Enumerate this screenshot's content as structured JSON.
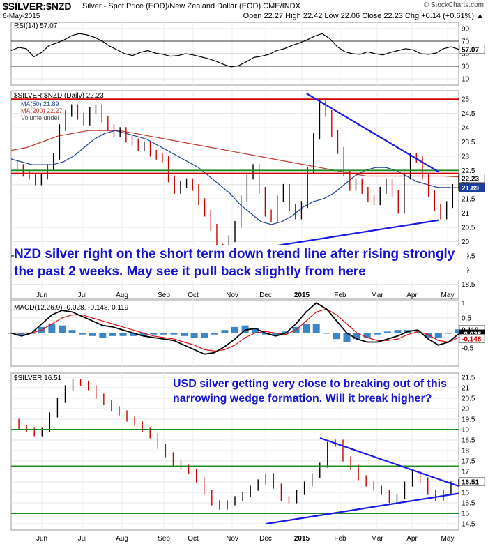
{
  "header": {
    "symbol": "$SILVER:$NZD",
    "description": "Silver - Spot Price (EOD)/New Zealand Dollar (EOD) CME/INDX",
    "date": "6-May-2015",
    "brand": "© StockCharts.com",
    "ohlc": "Open 22.27  High 22.42  Low 22.06  Close 22.23  Chg +0.14 (+0.61%) ▲"
  },
  "annotations": {
    "nzd": "NZD silver right on the short term down trend line after rising strongly the past 2 weeks. May see it pull back slightly from here",
    "usd": "USD silver getting very close to breaking out of this narrowing wedge formation. Will it break higher?"
  },
  "x_axis": {
    "labels": [
      "Jun",
      "Jul",
      "Aug",
      "Sep",
      "Oct",
      "Nov",
      "Dec",
      "2015",
      "Feb",
      "Mar",
      "Apr",
      "May"
    ]
  },
  "chart_data": [
    {
      "type": "line",
      "panel": "rsi",
      "legend": "RSI(14) 57.07",
      "ylim": [
        0,
        100
      ],
      "ticks": [
        10,
        30,
        50,
        70,
        90
      ],
      "last_label": "57.07",
      "reference_lines": [
        30,
        70
      ],
      "values": [
        55,
        60,
        58,
        45,
        52,
        63,
        67,
        72,
        79,
        82,
        80,
        76,
        70,
        62,
        56,
        50,
        47,
        52,
        55,
        51,
        49,
        46,
        47,
        50,
        48,
        45,
        42,
        38,
        33,
        29,
        31,
        37,
        44,
        46,
        49,
        55,
        58,
        63,
        67,
        72,
        78,
        82,
        74,
        61,
        53,
        50,
        49,
        53,
        50,
        48,
        52,
        55,
        58,
        56,
        50,
        49,
        51,
        58,
        61,
        57
      ]
    },
    {
      "type": "line",
      "panel": "nzd-price",
      "legend": [
        "$SILVER:$NZD (Daily) 22.23",
        "MA(50) 21.89",
        "MA(200) 22.27",
        "Volume undef"
      ],
      "ylim": [
        18,
        25.3
      ],
      "ticks": [
        18.5,
        19.0,
        19.5,
        20.0,
        20.5,
        21.0,
        21.5,
        22.0,
        22.5,
        23.0,
        23.5,
        24.0,
        24.5,
        25.0
      ],
      "last_labels": [
        "22.23",
        "21.89"
      ],
      "horizontal_lines": [
        25.0,
        22.4,
        22.5,
        19.5
      ],
      "trend_lines": [
        {
          "from": [
            0.66,
            25.2
          ],
          "to": [
            0.955,
            22.45
          ]
        },
        {
          "from": [
            0.49,
            19.6
          ],
          "to": [
            0.955,
            20.75
          ]
        }
      ],
      "close": [
        22.7,
        22.6,
        22.4,
        22.3,
        22.1,
        22.3,
        22.6,
        23.0,
        24.0,
        24.5,
        24.7,
        24.4,
        24.2,
        24.6,
        24.7,
        24.3,
        24.0,
        23.8,
        23.9,
        23.6,
        23.5,
        23.3,
        23.4,
        23.1,
        23.0,
        22.9,
        22.2,
        21.8,
        22.0,
        22.1,
        21.9,
        21.4,
        21.0,
        20.5,
        19.8,
        19.7,
        20.1,
        20.6,
        21.5,
        22.3,
        22.6,
        21.8,
        21.0,
        20.8,
        21.5,
        21.9,
        21.2,
        20.9,
        21.3,
        22.5,
        23.7,
        24.9,
        24.5,
        23.8,
        23.2,
        22.4,
        21.9,
        22.1,
        21.8,
        21.5,
        21.4,
        21.8,
        22.1,
        21.7,
        21.1,
        22.3,
        23.0,
        22.9,
        22.3,
        21.7,
        21.2,
        20.9,
        21.3,
        21.9,
        22.23
      ],
      "ma50": [
        22.9,
        22.8,
        22.7,
        22.7,
        22.7,
        22.8,
        23.0,
        23.3,
        23.6,
        23.8,
        23.9,
        23.8,
        23.7,
        23.6,
        23.4,
        23.2,
        23.0,
        22.8,
        22.6,
        22.3,
        22.0,
        21.7,
        21.3,
        21.0,
        20.7,
        20.6,
        20.7,
        20.9,
        21.2,
        21.4,
        21.5,
        21.7,
        22.0,
        22.3,
        22.5,
        22.6,
        22.6,
        22.5,
        22.3,
        22.1,
        22.0,
        21.9,
        21.9,
        21.89
      ],
      "ma200": [
        23.2,
        23.3,
        23.5,
        23.7,
        23.8,
        23.9,
        23.9,
        23.9,
        23.8,
        23.7,
        23.6,
        23.5,
        23.4,
        23.3,
        23.2,
        23.1,
        23.0,
        22.9,
        22.8,
        22.7,
        22.6,
        22.5,
        22.4,
        22.3,
        22.3,
        22.3,
        22.3,
        22.3,
        22.3,
        22.27
      ]
    },
    {
      "type": "line",
      "panel": "macd",
      "legend": "MACD(12,26,9) -0.028, -0.148, 0.119",
      "ylim": [
        -1.1,
        1.1
      ],
      "ticks": [
        -0.5,
        0.0,
        0.5,
        1.0
      ],
      "last_labels": [
        "0.119",
        "-0.028",
        "-0.148"
      ],
      "macd": [
        0.0,
        -0.1,
        0.0,
        0.3,
        0.6,
        0.75,
        0.7,
        0.55,
        0.4,
        0.25,
        0.2,
        0.1,
        0.0,
        -0.1,
        -0.15,
        -0.2,
        -0.25,
        -0.4,
        -0.55,
        -0.7,
        -0.65,
        -0.45,
        -0.2,
        0.1,
        0.15,
        0.0,
        -0.1,
        0.0,
        0.3,
        0.7,
        1.0,
        0.8,
        0.4,
        0.0,
        -0.2,
        -0.3,
        -0.3,
        -0.2,
        -0.1,
        0.05,
        0.1,
        -0.2,
        -0.4,
        -0.3,
        -0.028
      ],
      "signal": [
        0.0,
        0.0,
        0.0,
        0.1,
        0.3,
        0.5,
        0.6,
        0.6,
        0.5,
        0.4,
        0.3,
        0.2,
        0.1,
        0.0,
        -0.1,
        -0.15,
        -0.2,
        -0.3,
        -0.4,
        -0.55,
        -0.6,
        -0.55,
        -0.4,
        -0.15,
        0.0,
        0.05,
        0.0,
        -0.05,
        0.1,
        0.4,
        0.7,
        0.8,
        0.6,
        0.3,
        0.0,
        -0.15,
        -0.25,
        -0.25,
        -0.2,
        -0.05,
        0.05,
        -0.05,
        -0.25,
        -0.3,
        -0.148
      ]
    },
    {
      "type": "line",
      "panel": "usd-price",
      "legend": "$SILVER 16.51",
      "ylim": [
        14.2,
        21.7
      ],
      "ticks": [
        14.5,
        15.0,
        15.5,
        16.0,
        16.5,
        17.0,
        17.5,
        18.0,
        18.5,
        19.0,
        19.5,
        20.0,
        20.5,
        21.0,
        21.5
      ],
      "last_label": "16.51",
      "horizontal_lines": [
        19.0,
        17.25,
        15.0
      ],
      "trend_lines": [
        {
          "from": [
            0.69,
            18.6
          ],
          "to": [
            1.0,
            16.3
          ]
        },
        {
          "from": [
            0.57,
            14.5
          ],
          "to": [
            1.0,
            15.95
          ]
        }
      ],
      "close": [
        19.4,
        19.1,
        19.0,
        18.8,
        19.0,
        19.7,
        20.4,
        21.0,
        21.3,
        21.2,
        21.0,
        20.6,
        20.3,
        20.0,
        19.8,
        19.5,
        19.3,
        19.0,
        18.7,
        18.2,
        17.8,
        17.4,
        17.2,
        17.0,
        16.6,
        16.0,
        15.5,
        15.3,
        15.5,
        15.7,
        15.9,
        16.2,
        16.5,
        16.8,
        16.3,
        15.7,
        15.6,
        16.0,
        16.4,
        16.8,
        17.3,
        18.3,
        18.4,
        17.6,
        17.2,
        16.7,
        16.4,
        16.2,
        16.0,
        15.6,
        15.8,
        16.4,
        16.9,
        16.6,
        16.0,
        15.7,
        16.0,
        16.4,
        16.51
      ]
    }
  ]
}
